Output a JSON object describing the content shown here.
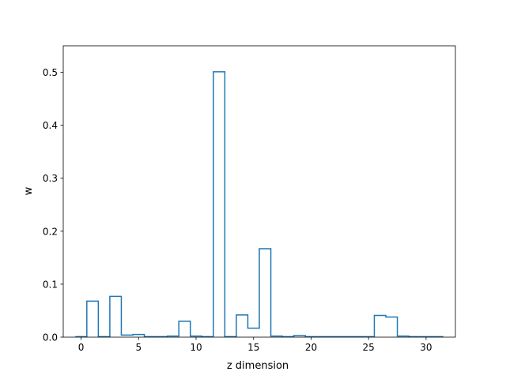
{
  "chart_data": {
    "type": "step",
    "title": "",
    "xlabel": "z dimension",
    "ylabel": "w",
    "xlim": [
      -1.55,
      32.55
    ],
    "ylim": [
      0,
      0.55
    ],
    "xticks": [
      0,
      5,
      10,
      15,
      20,
      25,
      30
    ],
    "yticks": [
      0.0,
      0.1,
      0.2,
      0.3,
      0.4,
      0.5
    ],
    "ytick_labels": [
      "0.0",
      "0.1",
      "0.2",
      "0.3",
      "0.4",
      "0.5"
    ],
    "grid": false,
    "series": [
      {
        "x_start": 0,
        "bin_width": 1,
        "values": [
          0.001,
          0.068,
          0.001,
          0.077,
          0.004,
          0.005,
          0.001,
          0.001,
          0.002,
          0.03,
          0.002,
          0.001,
          0.501,
          0.001,
          0.042,
          0.017,
          0.167,
          0.002,
          0.001,
          0.003,
          0.001,
          0.001,
          0.001,
          0.001,
          0.001,
          0.001,
          0.041,
          0.038,
          0.002,
          0.001,
          0.001,
          0.001
        ],
        "color": "#1f77b4"
      }
    ]
  }
}
